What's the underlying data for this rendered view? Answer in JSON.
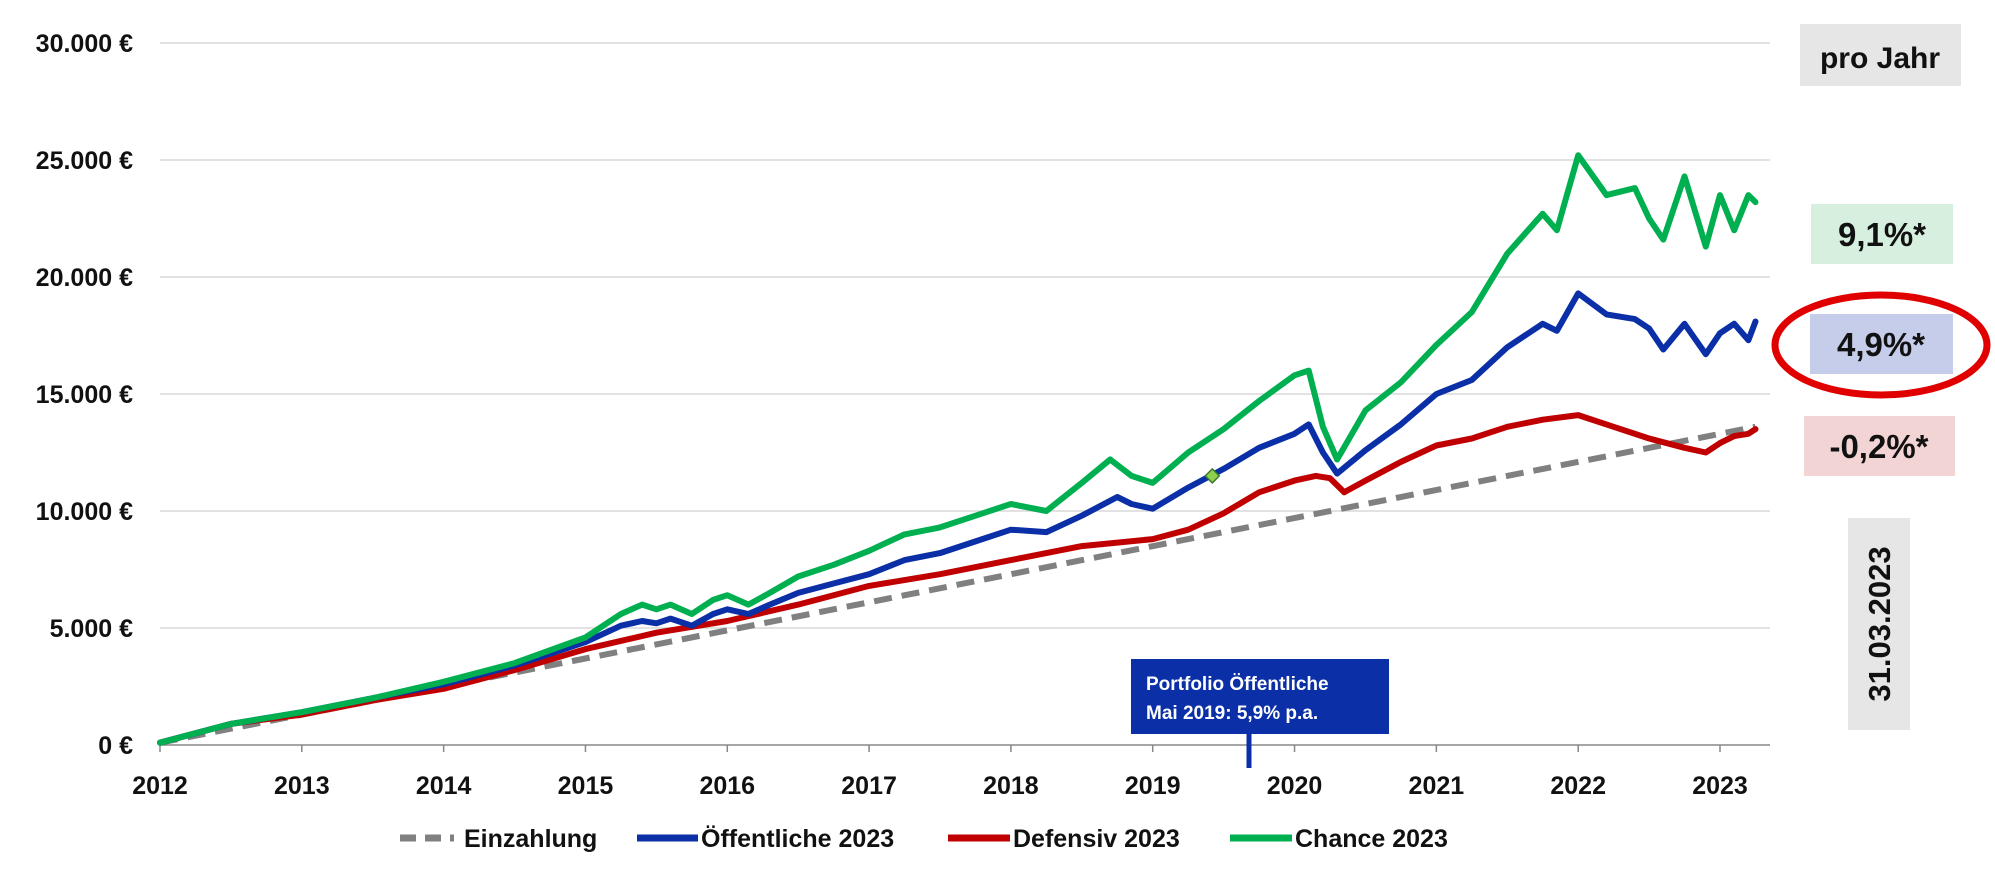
{
  "chart_data": {
    "type": "line",
    "title": "",
    "xlabel": "",
    "ylabel": "",
    "xlim": [
      2012.0,
      2023.3
    ],
    "ylim": [
      0,
      30000
    ],
    "x_ticks": [
      2012,
      2013,
      2014,
      2015,
      2016,
      2017,
      2018,
      2019,
      2020,
      2021,
      2022,
      2023
    ],
    "x_tick_labels": [
      "2012",
      "2013",
      "2014",
      "2015",
      "2016",
      "2017",
      "2018",
      "2019",
      "2020",
      "2021",
      "2022",
      "2023"
    ],
    "y_ticks": [
      0,
      5000,
      10000,
      15000,
      20000,
      25000,
      30000
    ],
    "y_tick_labels": [
      "0 €",
      "5.000 €",
      "10.000 €",
      "15.000 €",
      "20.000 €",
      "25.000 €",
      "30.000 €"
    ],
    "grid": true,
    "legend_position": "bottom",
    "series": [
      {
        "name": "Einzahlung",
        "color": "#808080",
        "style": "dashed",
        "x": [
          2012.0,
          2023.25
        ],
        "y": [
          100,
          13600
        ]
      },
      {
        "name": "Öffentliche 2023",
        "color": "#0a2fa6",
        "style": "solid",
        "x": [
          2012.0,
          2012.5,
          2013.0,
          2013.5,
          2014.0,
          2014.5,
          2015.0,
          2015.25,
          2015.4,
          2015.5,
          2015.6,
          2015.75,
          2015.9,
          2016.0,
          2016.15,
          2016.3,
          2016.5,
          2016.75,
          2017.0,
          2017.25,
          2017.5,
          2017.75,
          2018.0,
          2018.25,
          2018.5,
          2018.75,
          2018.85,
          2019.0,
          2019.25,
          2019.5,
          2019.75,
          2020.0,
          2020.1,
          2020.2,
          2020.3,
          2020.5,
          2020.75,
          2021.0,
          2021.25,
          2021.5,
          2021.75,
          2021.85,
          2022.0,
          2022.2,
          2022.4,
          2022.5,
          2022.6,
          2022.75,
          2022.9,
          2023.0,
          2023.1,
          2023.2,
          2023.25
        ],
        "y": [
          100,
          900,
          1400,
          2000,
          2600,
          3400,
          4400,
          5100,
          5300,
          5200,
          5400,
          5100,
          5600,
          5800,
          5600,
          6000,
          6500,
          6900,
          7300,
          7900,
          8200,
          8700,
          9200,
          9100,
          9800,
          10600,
          10300,
          10100,
          11000,
          11800,
          12700,
          13300,
          13700,
          12500,
          11600,
          12600,
          13700,
          15000,
          15600,
          17000,
          18000,
          17700,
          19300,
          18400,
          18200,
          17800,
          16900,
          18000,
          16700,
          17600,
          18000,
          17300,
          18100
        ]
      },
      {
        "name": "Defensiv 2023",
        "color": "#c00000",
        "style": "solid",
        "x": [
          2012.0,
          2012.5,
          2013.0,
          2013.5,
          2014.0,
          2014.5,
          2015.0,
          2015.5,
          2016.0,
          2016.5,
          2017.0,
          2017.5,
          2018.0,
          2018.5,
          2019.0,
          2019.25,
          2019.5,
          2019.75,
          2020.0,
          2020.15,
          2020.25,
          2020.35,
          2020.5,
          2020.75,
          2021.0,
          2021.25,
          2021.5,
          2021.75,
          2022.0,
          2022.25,
          2022.5,
          2022.75,
          2022.9,
          2023.0,
          2023.1,
          2023.2,
          2023.25
        ],
        "y": [
          100,
          900,
          1300,
          1900,
          2400,
          3200,
          4100,
          4800,
          5300,
          6000,
          6800,
          7300,
          7900,
          8500,
          8800,
          9200,
          9900,
          10800,
          11300,
          11500,
          11400,
          10800,
          11300,
          12100,
          12800,
          13100,
          13600,
          13900,
          14100,
          13600,
          13100,
          12700,
          12500,
          12900,
          13200,
          13300,
          13500
        ]
      },
      {
        "name": "Chance 2023",
        "color": "#00b050",
        "style": "solid",
        "x": [
          2012.0,
          2012.5,
          2013.0,
          2013.5,
          2014.0,
          2014.5,
          2015.0,
          2015.25,
          2015.4,
          2015.5,
          2015.6,
          2015.75,
          2015.9,
          2016.0,
          2016.15,
          2016.3,
          2016.5,
          2016.75,
          2017.0,
          2017.25,
          2017.5,
          2017.75,
          2018.0,
          2018.25,
          2018.5,
          2018.7,
          2018.85,
          2019.0,
          2019.25,
          2019.5,
          2019.75,
          2020.0,
          2020.1,
          2020.2,
          2020.3,
          2020.5,
          2020.75,
          2021.0,
          2021.25,
          2021.5,
          2021.75,
          2021.85,
          2022.0,
          2022.2,
          2022.4,
          2022.5,
          2022.6,
          2022.75,
          2022.9,
          2023.0,
          2023.1,
          2023.2,
          2023.25
        ],
        "y": [
          100,
          900,
          1400,
          2000,
          2700,
          3500,
          4600,
          5600,
          6000,
          5800,
          6000,
          5600,
          6200,
          6400,
          6000,
          6500,
          7200,
          7700,
          8300,
          9000,
          9300,
          9800,
          10300,
          10000,
          11200,
          12200,
          11500,
          11200,
          12500,
          13500,
          14700,
          15800,
          16000,
          13600,
          12200,
          14300,
          15500,
          17100,
          18500,
          21000,
          22700,
          22000,
          25200,
          23500,
          23800,
          22500,
          21600,
          24300,
          21300,
          23500,
          22000,
          23500,
          23200
        ]
      }
    ],
    "annotations": [
      {
        "x": 2019.42,
        "y": 11500,
        "text": "Portfolio Öffentliche Mai 2019: 5,9% p.a."
      }
    ]
  },
  "callout": {
    "line1": "Portfolio Öffentliche",
    "line2": "Mai 2019: 5,9% p.a."
  },
  "side_panel": {
    "header": "pro Jahr",
    "returns": [
      {
        "label": "9,1%*",
        "series": "Chance 2023",
        "bg": "#d6efdf",
        "highlighted": false
      },
      {
        "label": "4,9%*",
        "series": "Öffentliche 2023",
        "bg": "#c5cdea",
        "highlighted": true
      },
      {
        "label": "-0,2%*",
        "series": "Defensiv 2023",
        "bg": "#f3d4d4",
        "highlighted": false
      }
    ],
    "date": "31.03.2023",
    "highlight_color": "#e00000",
    "box_grey": "#e6e6e6"
  }
}
